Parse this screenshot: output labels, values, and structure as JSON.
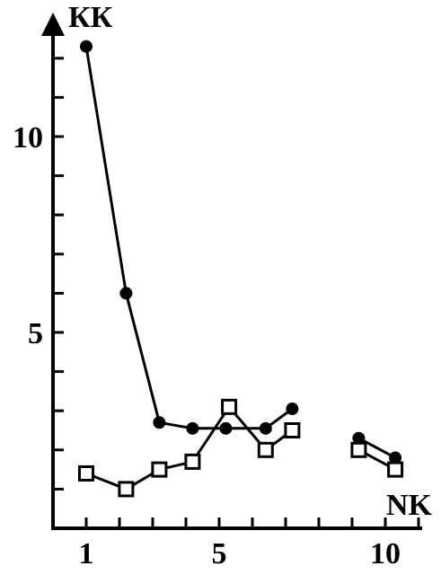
{
  "chart_data": {
    "type": "line",
    "ylabel": "КК",
    "xlabel": "NK",
    "xlim": [
      0,
      11.5
    ],
    "ylim": [
      0,
      12.9
    ],
    "x_ticks": [
      1,
      5,
      10
    ],
    "y_ticks": [
      5,
      10
    ],
    "grid": false,
    "series": [
      {
        "marker": "filled-circle",
        "color": "#000000",
        "segments": [
          [
            [
              1,
              12.3
            ],
            [
              2.2,
              6.0
            ],
            [
              3.2,
              2.7
            ],
            [
              4.2,
              2.55
            ],
            [
              5.2,
              2.55
            ],
            [
              6.4,
              2.55
            ],
            [
              7.2,
              3.05
            ]
          ],
          [
            [
              9.2,
              2.3
            ],
            [
              10.3,
              1.8
            ]
          ]
        ]
      },
      {
        "marker": "open-square",
        "color": "#000000",
        "segments": [
          [
            [
              1,
              1.4
            ],
            [
              2.2,
              1.0
            ],
            [
              3.2,
              1.5
            ],
            [
              4.2,
              1.7
            ],
            [
              5.3,
              3.1
            ],
            [
              6.4,
              2.0
            ],
            [
              7.2,
              2.5
            ]
          ],
          [
            [
              9.2,
              2.0
            ],
            [
              10.3,
              1.5
            ]
          ]
        ]
      }
    ]
  }
}
